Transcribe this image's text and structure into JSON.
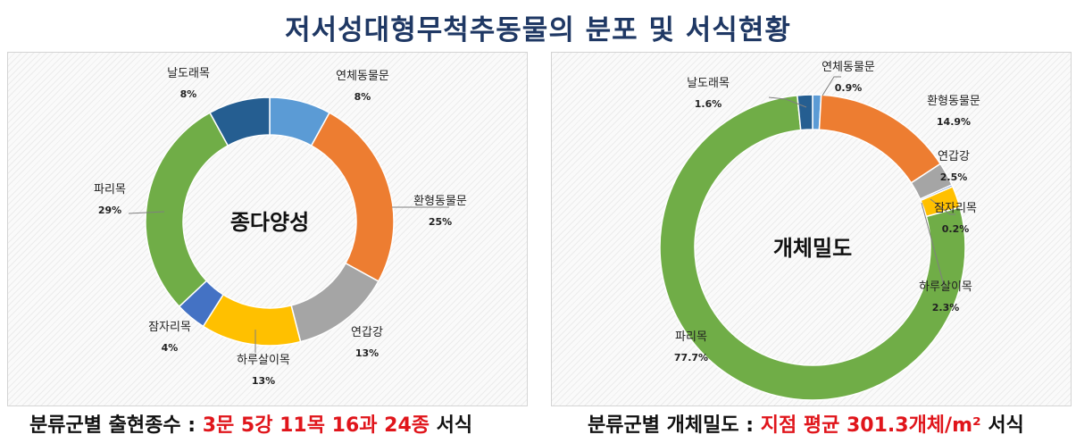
{
  "title": "저서성대형무척추동물의 분포 및 서식현황",
  "colors": {
    "title": "#1f3864",
    "caption_highlight": "#e0151b"
  },
  "chart_data": [
    {
      "type": "pie",
      "donut": true,
      "center_label": "종다양성",
      "slices": [
        {
          "label": "연체동물문",
          "value": 8,
          "value_label": "8%",
          "color": "#5b9bd5"
        },
        {
          "label": "환형동물문",
          "value": 25,
          "value_label": "25%",
          "color": "#ed7d31"
        },
        {
          "label": "연갑강",
          "value": 13,
          "value_label": "13%",
          "color": "#a5a5a5"
        },
        {
          "label": "하루살이목",
          "value": 13,
          "value_label": "13%",
          "color": "#ffc000"
        },
        {
          "label": "잠자리목",
          "value": 4,
          "value_label": "4%",
          "color": "#4472c4"
        },
        {
          "label": "파리목",
          "value": 29,
          "value_label": "29%",
          "color": "#70ad47"
        },
        {
          "label": "날도래목",
          "value": 8,
          "value_label": "8%",
          "color": "#255e91"
        }
      ]
    },
    {
      "type": "pie",
      "donut": true,
      "center_label": "개체밀도",
      "slices": [
        {
          "label": "연체동물문",
          "value": 0.9,
          "value_label": "0.9%",
          "color": "#5b9bd5"
        },
        {
          "label": "환형동물문",
          "value": 14.9,
          "value_label": "14.9%",
          "color": "#ed7d31"
        },
        {
          "label": "연갑강",
          "value": 2.5,
          "value_label": "2.5%",
          "color": "#a5a5a5"
        },
        {
          "label": "잠자리목",
          "value": 0.2,
          "value_label": "0.2%",
          "color": "#4472c4"
        },
        {
          "label": "하루살이목",
          "value": 2.3,
          "value_label": "2.3%",
          "color": "#ffc000"
        },
        {
          "label": "파리목",
          "value": 77.7,
          "value_label": "77.7%",
          "color": "#70ad47"
        },
        {
          "label": "날도래목",
          "value": 1.6,
          "value_label": "1.6%",
          "color": "#255e91"
        }
      ]
    }
  ],
  "captions": {
    "left": {
      "prefix": "분류군별 출현종수 : ",
      "highlight": "3문 5강 11목 16과 24종",
      "suffix": " 서식"
    },
    "right": {
      "prefix": "분류군별 개체밀도 : ",
      "highlight": "지점 평균 301.3개체/m² ",
      "suffix": "서식"
    }
  }
}
